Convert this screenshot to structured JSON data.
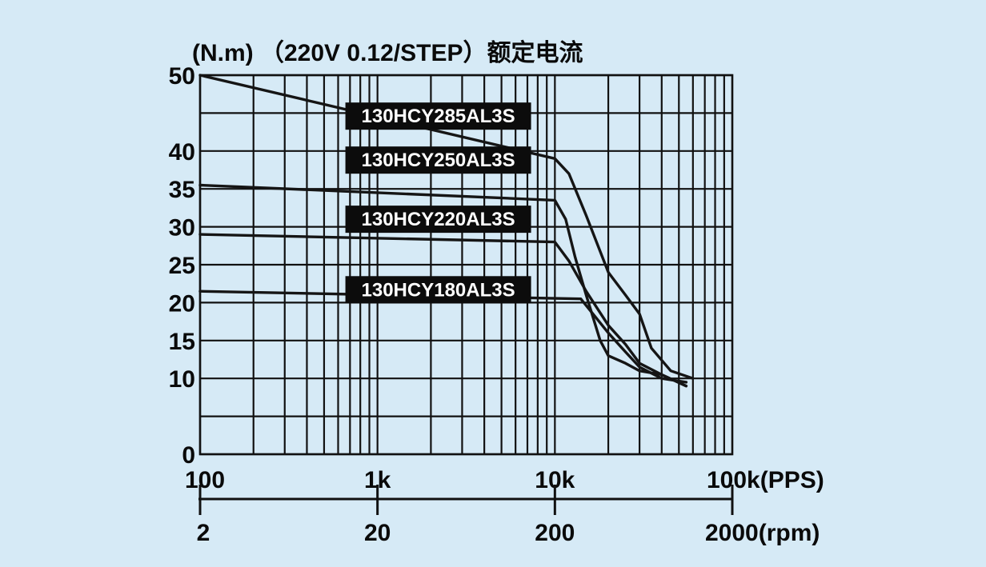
{
  "chart_data": {
    "type": "line",
    "title": "(N.m) （220V 0.12/STEP）额定电流",
    "x_scale": "log",
    "xlim": [
      100,
      100000
    ],
    "ylim": [
      0,
      50
    ],
    "x_ticks": [
      {
        "value": 100,
        "label": "100"
      },
      {
        "value": 1000,
        "label": "1k"
      },
      {
        "value": 10000,
        "label": "10k"
      },
      {
        "value": 100000,
        "label": "100k(PPS)"
      }
    ],
    "y_ticks": [
      {
        "value": 0,
        "label": "0"
      },
      {
        "value": 10,
        "label": "10"
      },
      {
        "value": 15,
        "label": "15"
      },
      {
        "value": 20,
        "label": "20"
      },
      {
        "value": 25,
        "label": "25"
      },
      {
        "value": 30,
        "label": "30"
      },
      {
        "value": 35,
        "label": "35"
      },
      {
        "value": 40,
        "label": "40"
      },
      {
        "value": 50,
        "label": "50"
      }
    ],
    "rpm_ticks": [
      {
        "value": 100,
        "label": "2"
      },
      {
        "value": 1000,
        "label": "20"
      },
      {
        "value": 10000,
        "label": "200"
      },
      {
        "value": 100000,
        "label": "2000(rpm)"
      }
    ],
    "grid": true,
    "series": [
      {
        "name": "130HCY285AL3S",
        "label_at": [
          2200,
          44.6
        ],
        "x": [
          100,
          10000,
          12000,
          15000,
          20000,
          25000,
          30000,
          35000,
          45000,
          60000
        ],
        "y": [
          50,
          39,
          37,
          31.5,
          24,
          21,
          18.5,
          14,
          11,
          10
        ]
      },
      {
        "name": "130HCY250AL3S",
        "label_at": [
          2200,
          38.8
        ],
        "x": [
          100,
          10000,
          11500,
          13000,
          15000,
          18000,
          20000,
          25000,
          30000,
          40000,
          55000
        ],
        "y": [
          35.5,
          33.5,
          31,
          26,
          21,
          15,
          13,
          12,
          11,
          10.5,
          9
        ]
      },
      {
        "name": "130HCY220AL3S",
        "label_at": [
          2200,
          31
        ]
      },
      {
        "name": "130HCY180AL3S",
        "label_at": [
          2200,
          21.7
        ],
        "x": [
          100,
          14000,
          20000,
          25000,
          30000,
          40000,
          55000
        ],
        "y": [
          21.5,
          20.5,
          16,
          13.5,
          11.5,
          10,
          9.5
        ]
      }
    ],
    "extra_curve": {
      "x": [
        100,
        10000,
        12000,
        15000,
        20000,
        25000,
        30000,
        40000,
        55000
      ],
      "y": [
        29,
        28,
        25.5,
        21.5,
        17,
        14.5,
        12,
        10.5,
        9
      ]
    }
  }
}
